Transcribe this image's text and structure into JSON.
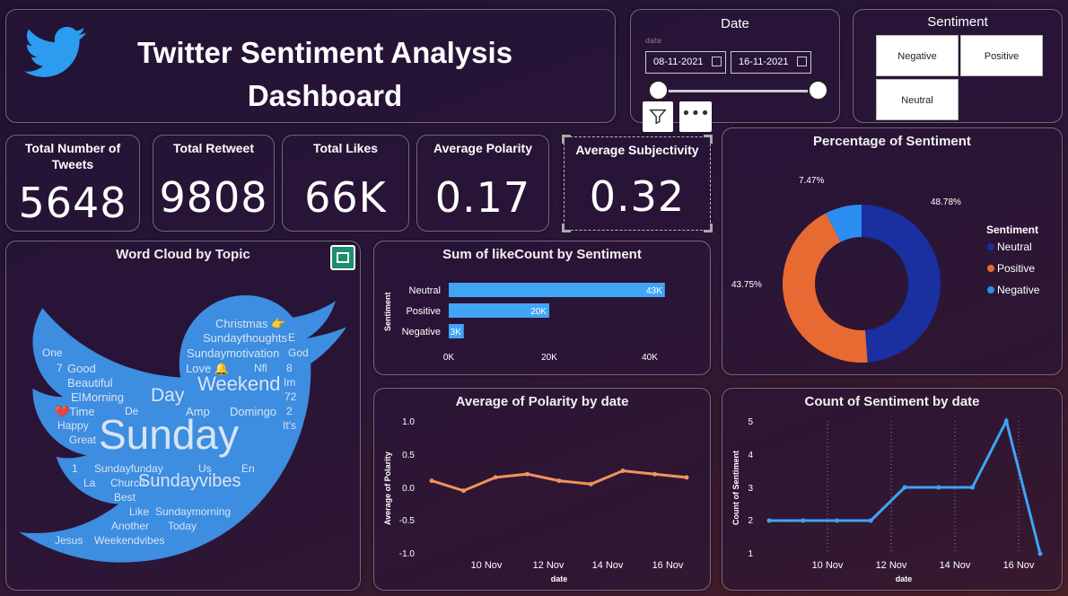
{
  "header": {
    "title_line1": "Twitter Sentiment Analysis",
    "title_line2": "Dashboard"
  },
  "date_slicer": {
    "title": "Date",
    "small_label": "date",
    "start": "08-11-2021",
    "end": "16-11-2021"
  },
  "sentiment_slicer": {
    "title": "Sentiment",
    "options": [
      "Negative",
      "Positive",
      "Neutral"
    ]
  },
  "kpis": [
    {
      "label": "Total Number of Tweets",
      "value": "5648"
    },
    {
      "label": "Total Retweet",
      "value": "9808"
    },
    {
      "label": "Total Likes",
      "value": "66K"
    },
    {
      "label": "Average Polarity",
      "value": "0.17"
    },
    {
      "label": "Average Subjectivity",
      "value": "0.32"
    }
  ],
  "word_cloud": {
    "title": "Word Cloud by Topic",
    "words": [
      "Christmas 👉",
      "Sundaythoughts",
      "E",
      "One",
      "Sundaymotivation",
      "God",
      "7",
      "Good",
      "Love 🔔",
      "Nfl",
      "8",
      "Beautiful",
      "Weekend",
      "Im",
      "El",
      "Morning",
      "Day",
      "72",
      "💔Time",
      "De",
      "Amp",
      "Domingo",
      "2",
      "Happy",
      "It's",
      "Great",
      "Sunday",
      "1",
      "Sundayfunday",
      "Us",
      "En",
      "La",
      "Church",
      "Sundayvibes",
      "Best",
      "Like",
      "Sundaymorning",
      "Another",
      "Today",
      "Jesus",
      "Weekendvibes"
    ]
  },
  "bar_chart": {
    "title": "Sum of likeCount by Sentiment",
    "y_axis_label": "Sentiment",
    "x_ticks": [
      "0K",
      "20K",
      "40K"
    ]
  },
  "donut_chart": {
    "title": "Percentage of Sentiment",
    "legend_title": "Sentiment"
  },
  "polarity_chart": {
    "title": "Average of Polarity by date",
    "y_axis_label": "Average of Polarity",
    "x_axis_label": "date",
    "y_ticks": [
      "1.0",
      "0.5",
      "0.0",
      "-0.5",
      "-1.0"
    ],
    "x_ticks": [
      "10 Nov",
      "12 Nov",
      "14 Nov",
      "16 Nov"
    ]
  },
  "count_chart": {
    "title": "Count of Sentiment by date",
    "y_axis_label": "Count of Sentiment",
    "x_axis_label": "date",
    "y_ticks": [
      "5",
      "4",
      "3",
      "2",
      "1"
    ],
    "x_ticks": [
      "10 Nov",
      "12 Nov",
      "14 Nov",
      "16 Nov"
    ]
  },
  "colors": {
    "neutral": "#1a2fa0",
    "positive": "#e86a33",
    "negative": "#2b8ef0",
    "bar": "#41a5f5",
    "polarity_line": "#f0935c",
    "count_line": "#3fa3f5",
    "twitter_blue": "#3d8de0"
  },
  "chart_data": [
    {
      "type": "bar",
      "title": "Sum of likeCount by Sentiment",
      "categories": [
        "Neutral",
        "Positive",
        "Negative"
      ],
      "values": [
        43000,
        20000,
        3000
      ],
      "data_labels": [
        "43K",
        "20K",
        "3K"
      ],
      "xlim": [
        0,
        50000
      ],
      "ylabel": "Sentiment"
    },
    {
      "type": "pie",
      "title": "Percentage of Sentiment",
      "categories": [
        "Neutral",
        "Positive",
        "Negative"
      ],
      "values": [
        48.78,
        43.75,
        7.47
      ],
      "data_labels": [
        "48.78%",
        "43.75%",
        "7.47%"
      ]
    },
    {
      "type": "line",
      "title": "Average of Polarity by date",
      "xlabel": "date",
      "ylabel": "Average of Polarity",
      "ylim": [
        -1.0,
        1.0
      ],
      "x": [
        "2021-11-08",
        "2021-11-09",
        "2021-11-10",
        "2021-11-11",
        "2021-11-12",
        "2021-11-13",
        "2021-11-14",
        "2021-11-15",
        "2021-11-16"
      ],
      "values": [
        0.1,
        -0.05,
        0.15,
        0.2,
        0.1,
        0.05,
        0.25,
        0.2,
        0.15
      ]
    },
    {
      "type": "line",
      "title": "Count of Sentiment by date",
      "xlabel": "date",
      "ylabel": "Count of Sentiment",
      "ylim": [
        1,
        5
      ],
      "x": [
        "2021-11-08",
        "2021-11-09",
        "2021-11-10",
        "2021-11-11",
        "2021-11-12",
        "2021-11-13",
        "2021-11-14",
        "2021-11-15",
        "2021-11-16"
      ],
      "values": [
        2,
        2,
        2,
        2,
        3,
        3,
        3,
        5,
        1
      ]
    }
  ]
}
